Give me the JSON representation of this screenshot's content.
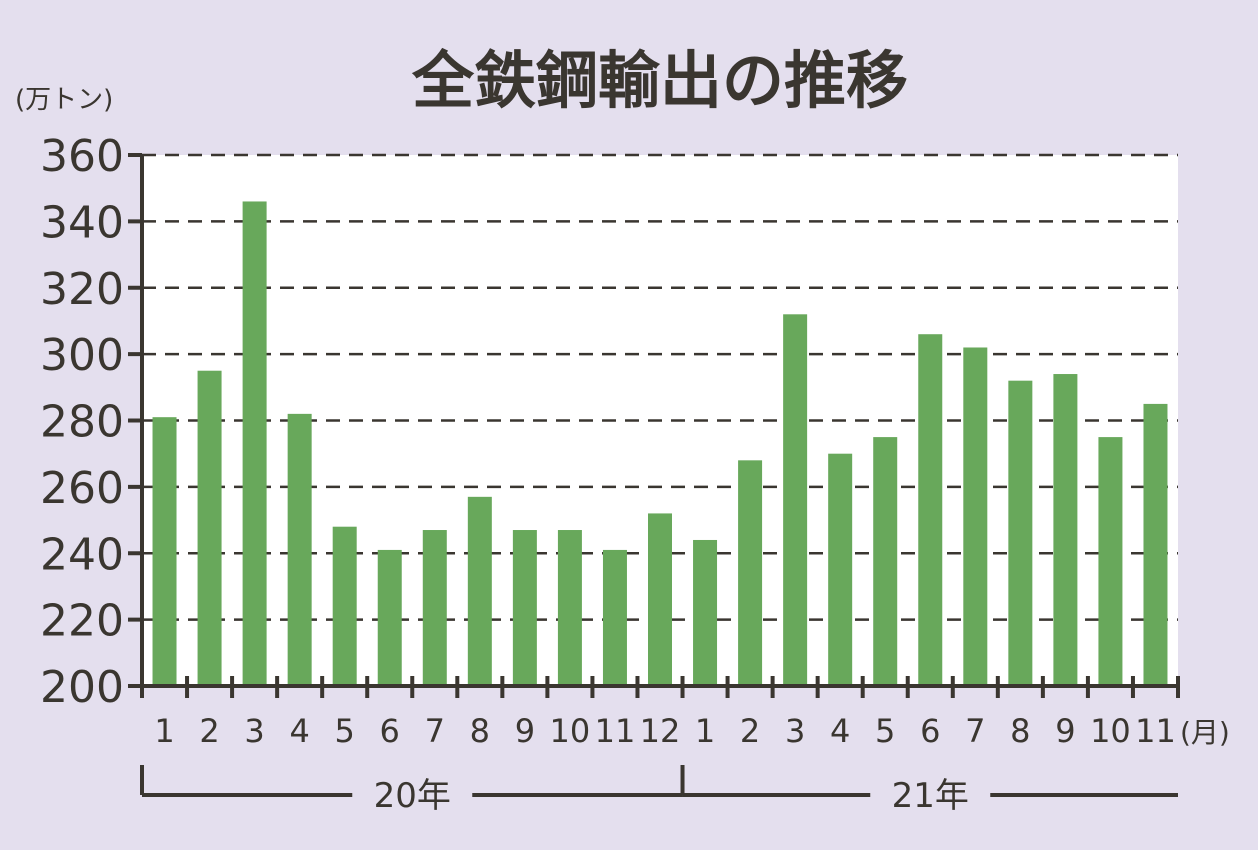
{
  "chart_data": {
    "type": "bar",
    "title": "全鉄鋼輸出の推移",
    "ylabel": "(万トン)",
    "xunit": "(月)",
    "ylim": [
      200,
      360
    ],
    "yticks": [
      200,
      220,
      240,
      260,
      280,
      300,
      320,
      340,
      360
    ],
    "grid": true,
    "categories": [
      "1",
      "2",
      "3",
      "4",
      "5",
      "6",
      "7",
      "8",
      "9",
      "10",
      "11",
      "12",
      "1",
      "2",
      "3",
      "4",
      "5",
      "6",
      "7",
      "8",
      "9",
      "10",
      "11"
    ],
    "values": [
      281,
      295,
      346,
      282,
      248,
      241,
      247,
      257,
      247,
      247,
      241,
      252,
      244,
      268,
      312,
      270,
      275,
      306,
      302,
      292,
      294,
      275,
      285
    ],
    "year_groups": [
      {
        "label": "20年",
        "count": 12
      },
      {
        "label": "21年",
        "count": 11
      }
    ],
    "colors": {
      "bar": "#68a85b",
      "background": "#e4dfee",
      "plot": "#ffffff",
      "axis": "#3a3630"
    }
  }
}
